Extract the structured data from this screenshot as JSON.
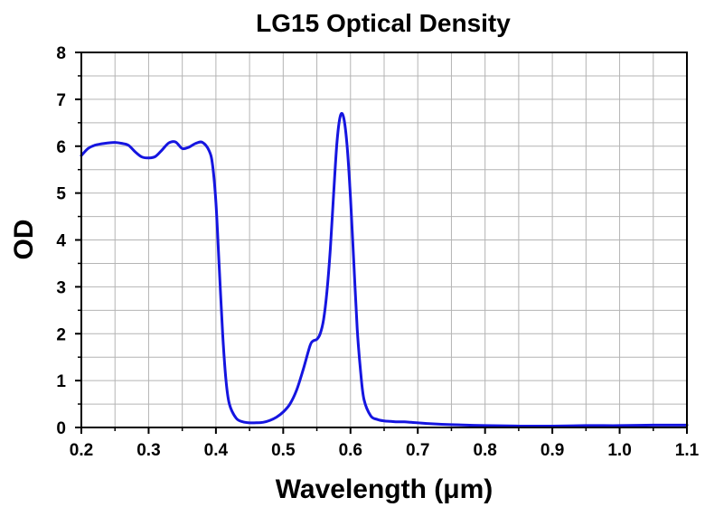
{
  "chart_data": {
    "type": "line",
    "title": "LG15 Optical Density",
    "xlabel": "Wavelength (μm)",
    "ylabel": "OD",
    "xlim": [
      0.2,
      1.1
    ],
    "ylim": [
      0,
      8
    ],
    "xticks": [
      "0.2",
      "0.3",
      "0.4",
      "0.5",
      "0.6",
      "0.7",
      "0.8",
      "0.9",
      "1.0",
      "1.1"
    ],
    "yticks": [
      "0",
      "1",
      "2",
      "3",
      "4",
      "5",
      "6",
      "7",
      "8"
    ],
    "grid": true,
    "line_color": "#1515e0",
    "series": [
      {
        "x": [
          0.2,
          0.21,
          0.22,
          0.23,
          0.24,
          0.25,
          0.26,
          0.27,
          0.28,
          0.29,
          0.3,
          0.31,
          0.32,
          0.33,
          0.34,
          0.35,
          0.36,
          0.37,
          0.38,
          0.39,
          0.395,
          0.4,
          0.405,
          0.41,
          0.415,
          0.42,
          0.43,
          0.44,
          0.45,
          0.46,
          0.47,
          0.48,
          0.49,
          0.5,
          0.51,
          0.52,
          0.53,
          0.54,
          0.545,
          0.55,
          0.555,
          0.56,
          0.565,
          0.57,
          0.575,
          0.58,
          0.585,
          0.59,
          0.595,
          0.6,
          0.605,
          0.61,
          0.615,
          0.62,
          0.63,
          0.64,
          0.65,
          0.66,
          0.67,
          0.68,
          0.69,
          0.7,
          0.72,
          0.75,
          0.8,
          0.85,
          0.9,
          0.95,
          1.0,
          1.05,
          1.1
        ],
        "y": [
          5.8,
          5.95,
          6.02,
          6.05,
          6.07,
          6.08,
          6.06,
          6.02,
          5.88,
          5.77,
          5.75,
          5.78,
          5.92,
          6.07,
          6.09,
          5.95,
          5.98,
          6.06,
          6.08,
          5.9,
          5.6,
          4.8,
          3.4,
          2.0,
          1.0,
          0.5,
          0.2,
          0.12,
          0.1,
          0.1,
          0.11,
          0.15,
          0.22,
          0.33,
          0.5,
          0.8,
          1.25,
          1.75,
          1.85,
          1.88,
          2.0,
          2.3,
          2.9,
          3.8,
          5.0,
          6.1,
          6.65,
          6.6,
          6.0,
          4.9,
          3.5,
          2.1,
          1.2,
          0.6,
          0.25,
          0.17,
          0.14,
          0.13,
          0.12,
          0.12,
          0.11,
          0.1,
          0.08,
          0.06,
          0.04,
          0.03,
          0.03,
          0.04,
          0.04,
          0.05,
          0.05
        ]
      }
    ]
  }
}
